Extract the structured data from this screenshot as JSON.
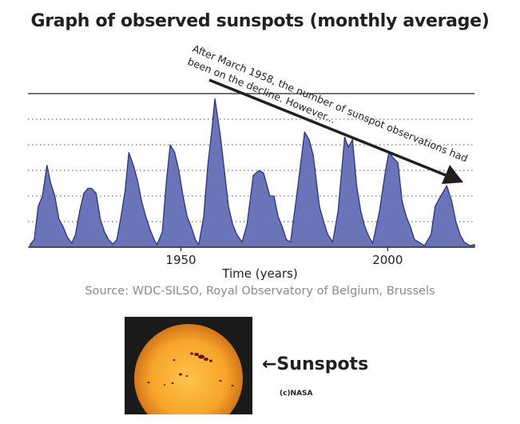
{
  "title": "Graph of observed sunspots (monthly average)",
  "annotation": {
    "line1": "After March 1958, the number of sunspot observations had",
    "line2": "been on the decline. However..."
  },
  "source": "Source: WDC-SILSO, Royal Observatory of Belgium, Brussels",
  "photo": {
    "label": "←Sunspots",
    "credit": "(c)NASA"
  },
  "colors": {
    "area_fill": "#6a74b8",
    "area_stroke": "#2b3480",
    "arrow": "#231f20"
  },
  "chart_data": {
    "type": "area",
    "xlabel": "Time (years)",
    "ylabel": "",
    "x_ticks": [
      1950,
      2000
    ],
    "xlim": [
      1913,
      2021
    ],
    "ylim": [
      0,
      300
    ],
    "grid": "dotted horizontal",
    "series": [
      {
        "x": [
          1913.5,
          1914.5,
          1915.5,
          1916.5,
          1917.6,
          1918.5,
          1919.5,
          1920.5,
          1921.5,
          1922.5,
          1923.6,
          1924.5,
          1925.5,
          1926.5,
          1927.5,
          1928.4,
          1929.5,
          1930.5,
          1931.5,
          1932.5,
          1933.5,
          1934.5,
          1935.5,
          1936.5,
          1937.4,
          1938.5,
          1939.5,
          1940.5,
          1941.5,
          1942.5,
          1943.5,
          1944.2,
          1945.5,
          1946.5,
          1947.4,
          1948.5,
          1949.5,
          1950.5,
          1951.5,
          1952.5,
          1953.5,
          1954.3,
          1955.5,
          1956.5,
          1957.5,
          1958.2,
          1959.5,
          1960.5,
          1961.5,
          1962.5,
          1963.5,
          1964.8,
          1966.0,
          1967.5,
          1968.9,
          1970.0,
          1971.5,
          1972.5,
          1973.5,
          1974.5,
          1975.5,
          1976.5,
          1978.0,
          1979.9,
          1981.0,
          1982.0,
          1983.5,
          1984.5,
          1985.5,
          1986.7,
          1988.0,
          1989.6,
          1990.5,
          1991.5,
          1992.5,
          1993.5,
          1994.5,
          1995.5,
          1996.4,
          1998.0,
          1999.5,
          2000.3,
          2001.3,
          2002.5,
          2003.5,
          2004.5,
          2005.5,
          2006.5,
          2007.5,
          2008.9,
          2010.5,
          2011.5,
          2012.5,
          2014.3,
          2015.5,
          2016.5,
          2017.5,
          2018.5,
          2019.9,
          2021.0
        ],
        "y": [
          5,
          15,
          80,
          100,
          160,
          125,
          100,
          55,
          40,
          20,
          8,
          25,
          70,
          105,
          115,
          115,
          105,
          55,
          30,
          15,
          6,
          15,
          60,
          110,
          185,
          160,
          130,
          90,
          60,
          35,
          15,
          5,
          30,
          130,
          200,
          185,
          150,
          100,
          60,
          40,
          15,
          5,
          60,
          160,
          230,
          290,
          220,
          150,
          80,
          45,
          25,
          10,
          45,
          140,
          150,
          145,
          100,
          100,
          60,
          40,
          15,
          10,
          100,
          225,
          210,
          180,
          80,
          50,
          25,
          10,
          70,
          215,
          195,
          210,
          120,
          70,
          40,
          20,
          8,
          70,
          150,
          185,
          175,
          165,
          90,
          60,
          40,
          15,
          10,
          3,
          25,
          80,
          95,
          120,
          90,
          50,
          25,
          10,
          3,
          5
        ]
      }
    ]
  }
}
